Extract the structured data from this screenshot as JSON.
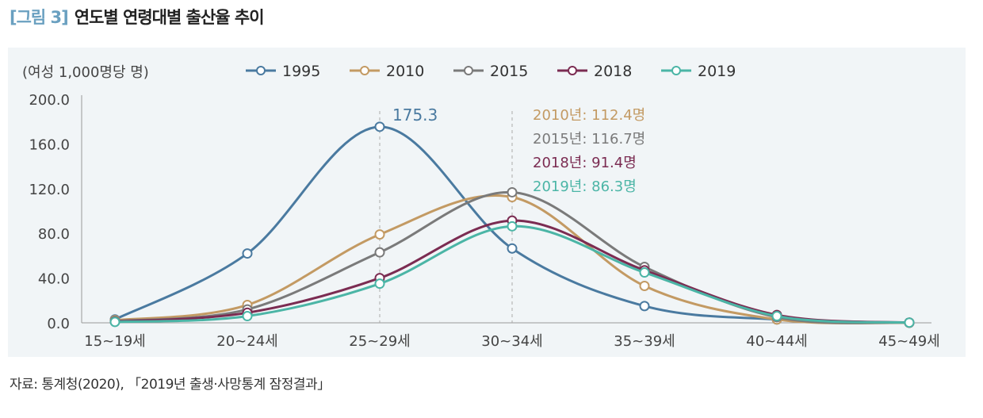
{
  "figure": {
    "number": "[그림 3]",
    "title": "연도별 연령대별 출산율 추이"
  },
  "source": "자료: 통계청(2020), 「2019년 출생·사망통계 잠정결과」",
  "chart_data": {
    "type": "line",
    "unit_label": "(여성 1,000명당 명)",
    "categories": [
      "15~19세",
      "20~24세",
      "25~29세",
      "30~34세",
      "35~39세",
      "40~44세",
      "45~49세"
    ],
    "ylim": [
      0,
      200
    ],
    "yticks": [
      "0.0",
      "40.0",
      "80.0",
      "120.0",
      "160.0",
      "200.0"
    ],
    "legend_placement": "top",
    "grid": false,
    "series": [
      {
        "name": "1995",
        "color": "#4a7aa0",
        "values": [
          3,
          62,
          175.3,
          66.5,
          15,
          3,
          0.1
        ]
      },
      {
        "name": "2010",
        "color": "#c39a63",
        "values": [
          2.3,
          16,
          79,
          112.4,
          33,
          3,
          0
        ]
      },
      {
        "name": "2015",
        "color": "#7a7a7a",
        "values": [
          1.5,
          12,
          63,
          116.7,
          50,
          5,
          0.2
        ]
      },
      {
        "name": "2018",
        "color": "#7b2c52",
        "values": [
          1,
          9,
          40,
          91.4,
          47,
          7,
          0.2
        ]
      },
      {
        "name": "2019",
        "color": "#4bb5a6",
        "values": [
          0.8,
          6,
          35,
          86.3,
          45,
          6,
          0.2
        ]
      }
    ],
    "annotations": [
      {
        "text": "175.3",
        "color": "#4a7aa0"
      },
      {
        "text": "2010년: 112.4명",
        "color": "#c39a63"
      },
      {
        "text": "2015년: 116.7명",
        "color": "#7a7a7a"
      },
      {
        "text": "2018년: 91.4명",
        "color": "#7b2c52"
      },
      {
        "text": "2019년: 86.3명",
        "color": "#4bb5a6"
      }
    ]
  }
}
